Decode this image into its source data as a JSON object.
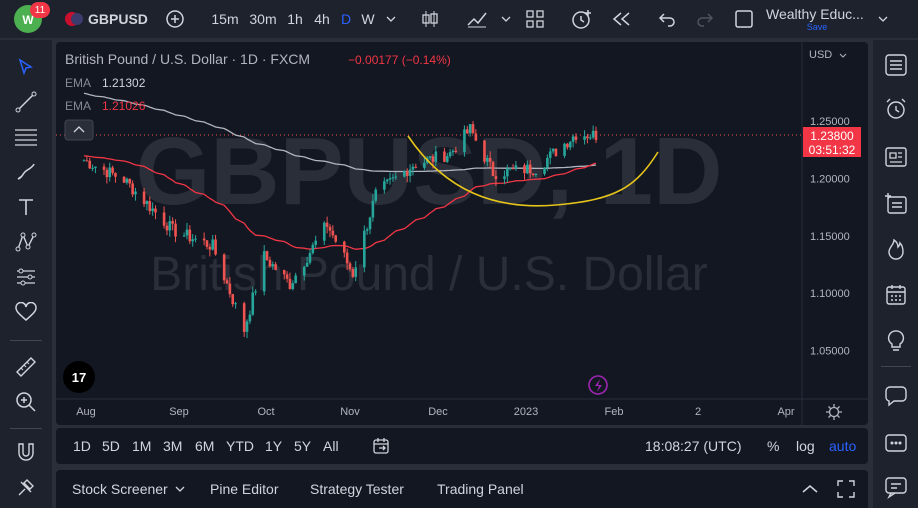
{
  "header": {
    "notification_count": "11",
    "symbol": "GBPUSD",
    "intervals": [
      "15m",
      "30m",
      "1h",
      "4h",
      "D",
      "W"
    ],
    "account_name": "Wealthy Educ...",
    "save_label": "Save"
  },
  "legend": {
    "title": "British Pound / U.S. Dollar · 1D · FXCM",
    "change": "−0.00177 (−0.14%)",
    "ema1_label": "EMA",
    "ema1_value": "1.21302",
    "ema2_label": "EMA",
    "ema2_value": "1.21026"
  },
  "watermark": {
    "line1": "GBPUSD, 1D",
    "line2": "British Pound / U.S. Dollar"
  },
  "price_axis": {
    "currency": "USD",
    "ticks": [
      "1.25000",
      "1.20000",
      "1.15000",
      "1.10000",
      "1.05000"
    ],
    "current_price": "1.23800",
    "countdown": "03:51:32"
  },
  "time_axis": {
    "ticks": [
      "Aug",
      "Sep",
      "Oct",
      "Nov",
      "Dec",
      "2023",
      "Feb",
      "2",
      "Apr"
    ]
  },
  "range_bar": {
    "ranges": [
      "1D",
      "5D",
      "1M",
      "3M",
      "6M",
      "YTD",
      "1Y",
      "5Y",
      "All"
    ],
    "clock": "18:08:27 (UTC)",
    "percent_label": "%",
    "log_label": "log",
    "auto_label": "auto"
  },
  "bottom_tabs": [
    "Stock Screener",
    "Pine Editor",
    "Strategy Tester",
    "Trading Panel"
  ],
  "colors": {
    "up": "#26a69a",
    "down": "#ef5350",
    "accent": "#2962ff",
    "ema_fast": "#f23645",
    "ema_slow": "#b2b5be",
    "curve": "#e6c41a"
  },
  "chart_data": {
    "type": "candlestick",
    "symbol": "GBPUSD",
    "interval": "1D",
    "x_ticks": [
      "Aug",
      "Sep",
      "Oct",
      "Nov",
      "Dec",
      "2023",
      "Feb"
    ],
    "y_ticks": [
      1.05,
      1.1,
      1.15,
      1.2,
      1.25
    ],
    "ylim": [
      1.02,
      1.28
    ],
    "last_price": 1.238,
    "close_approx": [
      {
        "date": "2022-08-01",
        "close": 1.216
      },
      {
        "date": "2022-08-15",
        "close": 1.199
      },
      {
        "date": "2022-09-01",
        "close": 1.155
      },
      {
        "date": "2022-09-15",
        "close": 1.141
      },
      {
        "date": "2022-09-26",
        "close": 1.068
      },
      {
        "date": "2022-10-03",
        "close": 1.132
      },
      {
        "date": "2022-10-12",
        "close": 1.108
      },
      {
        "date": "2022-10-25",
        "close": 1.16
      },
      {
        "date": "2022-11-03",
        "close": 1.117
      },
      {
        "date": "2022-11-11",
        "close": 1.186
      },
      {
        "date": "2022-11-24",
        "close": 1.212
      },
      {
        "date": "2022-12-07",
        "close": 1.222
      },
      {
        "date": "2022-12-14",
        "close": 1.243
      },
      {
        "date": "2022-12-22",
        "close": 1.205
      },
      {
        "date": "2023-01-06",
        "close": 1.209
      },
      {
        "date": "2023-01-20",
        "close": 1.239
      },
      {
        "date": "2023-01-27",
        "close": 1.238
      }
    ],
    "series": [
      {
        "name": "EMA",
        "last": 1.21302
      },
      {
        "name": "EMA",
        "last": 1.21026
      }
    ]
  }
}
